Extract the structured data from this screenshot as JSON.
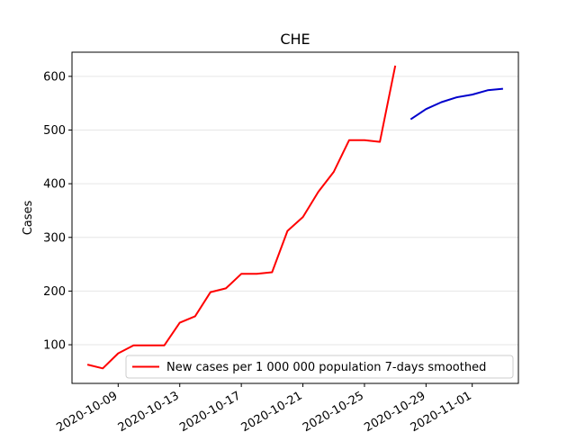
{
  "chart_data": {
    "type": "line",
    "title": "CHE",
    "xlabel": "",
    "ylabel": "Cases",
    "x_range": [
      "2020-10-06",
      "2020-11-04"
    ],
    "ylim": [
      28,
      645
    ],
    "y_ticks": [
      100,
      200,
      300,
      400,
      500,
      600
    ],
    "x_ticks": [
      "2020-10-09",
      "2020-10-13",
      "2020-10-17",
      "2020-10-21",
      "2020-10-25",
      "2020-10-29",
      "2020-11-01"
    ],
    "grid": "horizontal",
    "legend_position": "lower-right",
    "series": [
      {
        "name": "New cases per 1 000 000 population 7-days smoothed",
        "color": "#ff0000",
        "x": [
          "2020-10-07",
          "2020-10-08",
          "2020-10-09",
          "2020-10-10",
          "2020-10-11",
          "2020-10-12",
          "2020-10-13",
          "2020-10-14",
          "2020-10-15",
          "2020-10-16",
          "2020-10-17",
          "2020-10-18",
          "2020-10-19",
          "2020-10-20",
          "2020-10-21",
          "2020-10-22",
          "2020-10-23",
          "2020-10-24",
          "2020-10-25",
          "2020-10-26",
          "2020-10-27"
        ],
        "y": [
          63,
          56,
          84,
          99,
          99,
          99,
          141,
          153,
          198,
          205,
          232,
          232,
          235,
          312,
          338,
          385,
          422,
          481,
          481,
          478,
          620
        ]
      },
      {
        "name": "",
        "color": "#0000cc",
        "x": [
          "2020-10-28",
          "2020-10-29",
          "2020-10-30",
          "2020-10-31",
          "2020-11-01",
          "2020-11-02",
          "2020-11-03"
        ],
        "y": [
          520,
          539,
          552,
          561,
          566,
          574,
          577
        ]
      }
    ]
  }
}
